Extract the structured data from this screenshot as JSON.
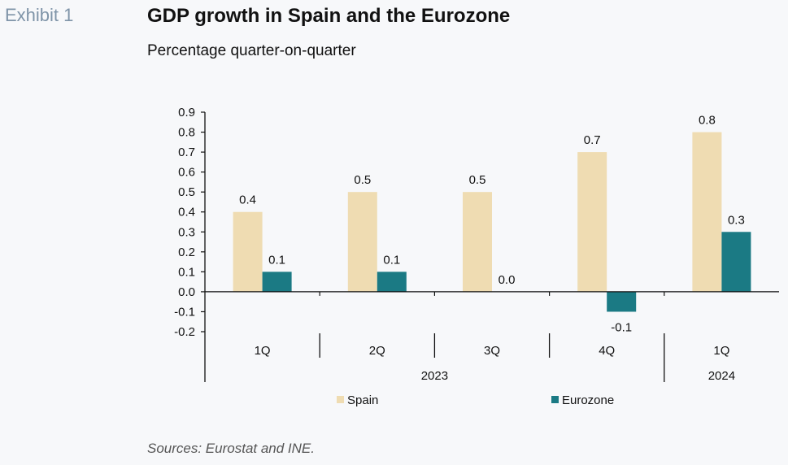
{
  "header": {
    "exhibit": "Exhibit 1",
    "title": "GDP growth in Spain and the Eurozone",
    "subtitle": "Percentage quarter-on-quarter"
  },
  "footer": {
    "source": "Sources: Eurostat and INE."
  },
  "colors": {
    "spain": "#efdcb2",
    "eurozone": "#1b7a84"
  },
  "chart_data": {
    "type": "bar",
    "title": "GDP growth in Spain and the Eurozone",
    "subtitle": "Percentage quarter-on-quarter",
    "categories": [
      "1Q",
      "2Q",
      "3Q",
      "4Q",
      "1Q"
    ],
    "groups": [
      {
        "label": "2023",
        "categories": [
          "1Q",
          "2Q",
          "3Q",
          "4Q"
        ]
      },
      {
        "label": "2024",
        "categories": [
          "1Q"
        ]
      }
    ],
    "series": [
      {
        "name": "Spain",
        "values": [
          0.4,
          0.5,
          0.5,
          0.7,
          0.8
        ],
        "labels": [
          "0.4",
          "0.5",
          "0.5",
          "0.7",
          "0.8"
        ]
      },
      {
        "name": "Eurozone",
        "values": [
          0.1,
          0.1,
          0.0,
          -0.1,
          0.3
        ],
        "labels": [
          "0.1",
          "0.1",
          "0.0",
          "-0.1",
          "0.3"
        ]
      }
    ],
    "yticks": [
      "0.9",
      "0.8",
      "0.7",
      "0.6",
      "0.5",
      "0.4",
      "0.3",
      "0.2",
      "0.1",
      "0.0",
      "-0.1",
      "-0.2"
    ],
    "ylim": [
      -0.2,
      0.9
    ],
    "legend_position": "bottom",
    "grid": false
  }
}
